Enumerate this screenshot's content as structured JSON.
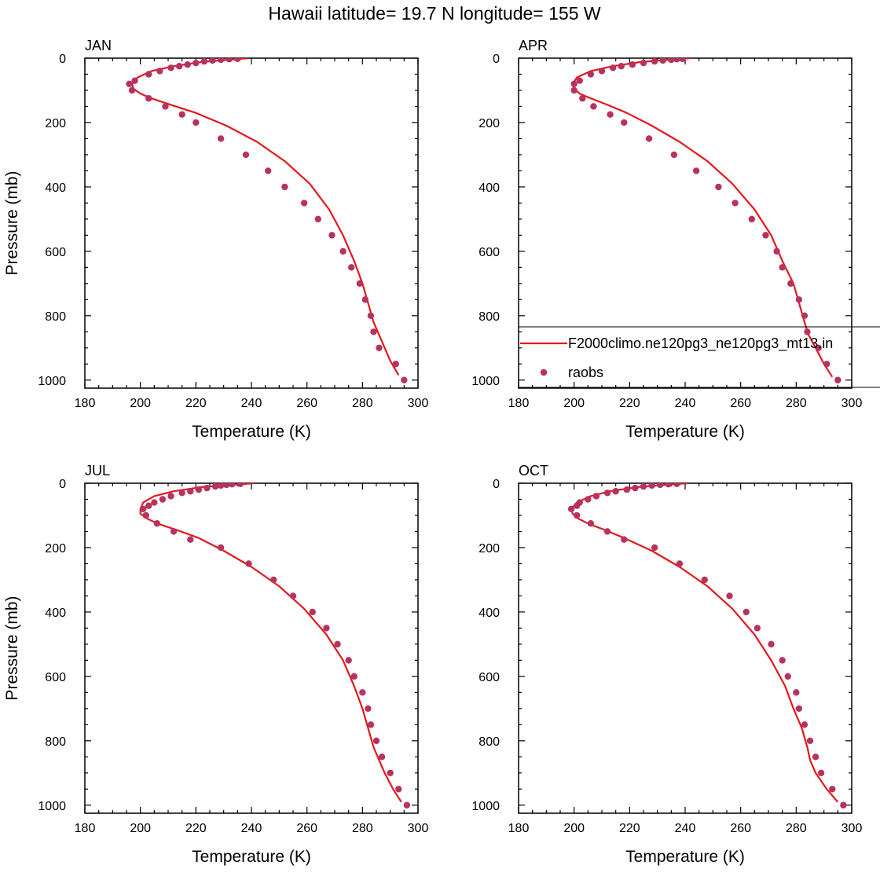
{
  "figure": {
    "title": "Hawaii  latitude= 19.7 N longitude= 155 W"
  },
  "colors": {
    "model_line": "#e3191c",
    "obs_marker": "#b8325e",
    "axis": "#000000"
  },
  "legend": {
    "entries": [
      "F2000climo.ne120pg3_ne120pg3_mt13.in",
      "raobs"
    ]
  },
  "chart_data": [
    {
      "type": "line",
      "panel": "JAN",
      "title": "JAN",
      "xlabel": "Temperature (K)",
      "ylabel": "Pressure (mb)",
      "xlim": [
        180,
        300
      ],
      "ylim": [
        1025,
        0
      ],
      "y_inverted": true,
      "xticks": [
        180,
        200,
        220,
        240,
        260,
        280,
        300
      ],
      "yticks": [
        0,
        200,
        400,
        600,
        800,
        1000
      ],
      "series": [
        {
          "name": "F2000climo.ne120pg3_ne120pg3_mt13.in",
          "kind": "line",
          "x": [
            239,
            232,
            222,
            212,
            204,
            199,
            197,
            197.5,
            200,
            204,
            211,
            220,
            231,
            242,
            252,
            261,
            268,
            273,
            277,
            280,
            282,
            284,
            287,
            290,
            293
          ],
          "y": [
            0,
            5,
            12,
            25,
            40,
            60,
            80,
            95,
            110,
            125,
            145,
            170,
            210,
            260,
            320,
            390,
            470,
            550,
            630,
            700,
            760,
            820,
            880,
            940,
            985
          ]
        },
        {
          "name": "raobs",
          "kind": "scatter",
          "x": [
            235,
            232,
            229,
            226,
            223,
            220,
            217,
            214,
            211,
            207,
            203,
            198,
            196,
            197,
            203,
            209,
            215,
            220,
            229,
            238,
            246,
            252,
            259,
            264,
            269,
            273,
            276,
            279,
            281,
            283,
            284,
            286,
            292,
            295
          ],
          "y": [
            2,
            3,
            5,
            7,
            10,
            15,
            20,
            25,
            30,
            40,
            50,
            70,
            80,
            100,
            125,
            150,
            175,
            200,
            250,
            300,
            350,
            400,
            450,
            500,
            550,
            600,
            650,
            700,
            750,
            800,
            850,
            900,
            950,
            1000
          ]
        }
      ]
    },
    {
      "type": "line",
      "panel": "APR",
      "title": "APR",
      "xlabel": "Temperature (K)",
      "ylabel": "",
      "xlim": [
        180,
        300
      ],
      "ylim": [
        1025,
        0
      ],
      "y_inverted": true,
      "xticks": [
        180,
        200,
        220,
        240,
        260,
        280,
        300
      ],
      "yticks": [
        0,
        200,
        400,
        600,
        800,
        1000
      ],
      "series": [
        {
          "name": "F2000climo.ne120pg3_ne120pg3_mt13.in",
          "kind": "line",
          "x": [
            242,
            234,
            224,
            214,
            206,
            201,
            199.5,
            200,
            202,
            206,
            212,
            219,
            228,
            238,
            248,
            257,
            265,
            271,
            275,
            279,
            281,
            283,
            284.5,
            287,
            290,
            293
          ],
          "y": [
            0,
            5,
            12,
            25,
            40,
            60,
            80,
            95,
            110,
            125,
            145,
            170,
            210,
            260,
            320,
            390,
            470,
            550,
            630,
            700,
            760,
            820,
            860,
            900,
            950,
            990
          ]
        },
        {
          "name": "raobs",
          "kind": "scatter",
          "x": [
            239,
            237,
            235,
            232,
            229,
            225,
            221,
            217,
            214,
            210,
            206,
            202,
            200,
            200,
            203,
            207,
            213,
            218,
            227,
            236,
            244,
            252,
            258,
            264,
            269,
            273,
            275,
            278,
            281,
            283,
            284,
            288,
            291,
            295
          ],
          "y": [
            2,
            3,
            5,
            7,
            10,
            15,
            20,
            25,
            30,
            40,
            50,
            70,
            80,
            100,
            125,
            150,
            175,
            200,
            250,
            300,
            350,
            400,
            450,
            500,
            550,
            600,
            650,
            700,
            750,
            800,
            850,
            900,
            950,
            1000
          ]
        }
      ]
    },
    {
      "type": "line",
      "panel": "JUL",
      "title": "JUL",
      "xlabel": "Temperature (K)",
      "ylabel": "Pressure (mb)",
      "xlim": [
        180,
        300
      ],
      "ylim": [
        1025,
        0
      ],
      "y_inverted": true,
      "xticks": [
        180,
        200,
        220,
        240,
        260,
        280,
        300
      ],
      "yticks": [
        0,
        200,
        400,
        600,
        800,
        1000
      ],
      "series": [
        {
          "name": "F2000climo.ne120pg3_ne120pg3_mt13.in",
          "kind": "line",
          "x": [
            241,
            233,
            222,
            212,
            205,
            201,
            200,
            200,
            202.5,
            206,
            213,
            221,
            230,
            240,
            250,
            259,
            267,
            273,
            277,
            280,
            282,
            284,
            286,
            288,
            291,
            294
          ],
          "y": [
            0,
            5,
            12,
            25,
            40,
            60,
            80,
            95,
            110,
            125,
            145,
            170,
            210,
            260,
            320,
            390,
            470,
            550,
            630,
            700,
            760,
            820,
            860,
            900,
            950,
            990
          ]
        },
        {
          "name": "raobs",
          "kind": "scatter",
          "x": [
            236,
            233,
            231,
            229,
            227,
            224,
            221,
            218,
            215,
            211,
            208,
            205,
            203,
            201,
            202,
            206,
            212,
            218,
            229,
            239,
            248,
            255,
            262,
            267,
            271,
            275,
            277,
            280,
            282,
            283,
            285,
            287,
            290,
            293,
            296
          ],
          "y": [
            2,
            3,
            5,
            7,
            10,
            15,
            20,
            25,
            30,
            40,
            50,
            60,
            70,
            80,
            100,
            125,
            150,
            175,
            200,
            250,
            300,
            350,
            400,
            450,
            500,
            550,
            600,
            650,
            700,
            750,
            800,
            850,
            900,
            950,
            1000
          ]
        }
      ]
    },
    {
      "type": "line",
      "panel": "OCT",
      "title": "OCT",
      "xlabel": "Temperature (K)",
      "ylabel": "",
      "xlim": [
        180,
        300
      ],
      "ylim": [
        1025,
        0
      ],
      "y_inverted": true,
      "xticks": [
        180,
        200,
        220,
        240,
        260,
        280,
        300
      ],
      "yticks": [
        0,
        200,
        400,
        600,
        800,
        1000
      ],
      "series": [
        {
          "name": "F2000climo.ne120pg3_ne120pg3_mt13.in",
          "kind": "line",
          "x": [
            241,
            233,
            223,
            213,
            206,
            201,
            199,
            199.5,
            201.5,
            205,
            211,
            218,
            228,
            238,
            248,
            257,
            265,
            271,
            276,
            279,
            282,
            284,
            285,
            287,
            291,
            295
          ],
          "y": [
            0,
            5,
            12,
            25,
            40,
            60,
            80,
            95,
            110,
            125,
            145,
            170,
            210,
            260,
            320,
            390,
            470,
            550,
            630,
            700,
            760,
            820,
            860,
            900,
            950,
            990
          ]
        },
        {
          "name": "raobs",
          "kind": "scatter",
          "x": [
            237,
            234,
            231,
            228,
            225,
            222,
            219,
            215,
            212,
            208,
            205,
            202,
            201,
            199,
            201,
            206,
            212,
            218,
            229,
            238,
            247,
            256,
            262,
            266,
            271,
            275,
            277,
            280,
            281,
            283,
            285,
            287,
            289,
            293,
            297
          ],
          "y": [
            2,
            3,
            5,
            7,
            10,
            15,
            20,
            25,
            30,
            40,
            50,
            60,
            70,
            80,
            100,
            125,
            150,
            175,
            200,
            250,
            300,
            350,
            400,
            450,
            500,
            550,
            600,
            650,
            700,
            750,
            800,
            850,
            900,
            950,
            1000
          ]
        }
      ]
    }
  ]
}
